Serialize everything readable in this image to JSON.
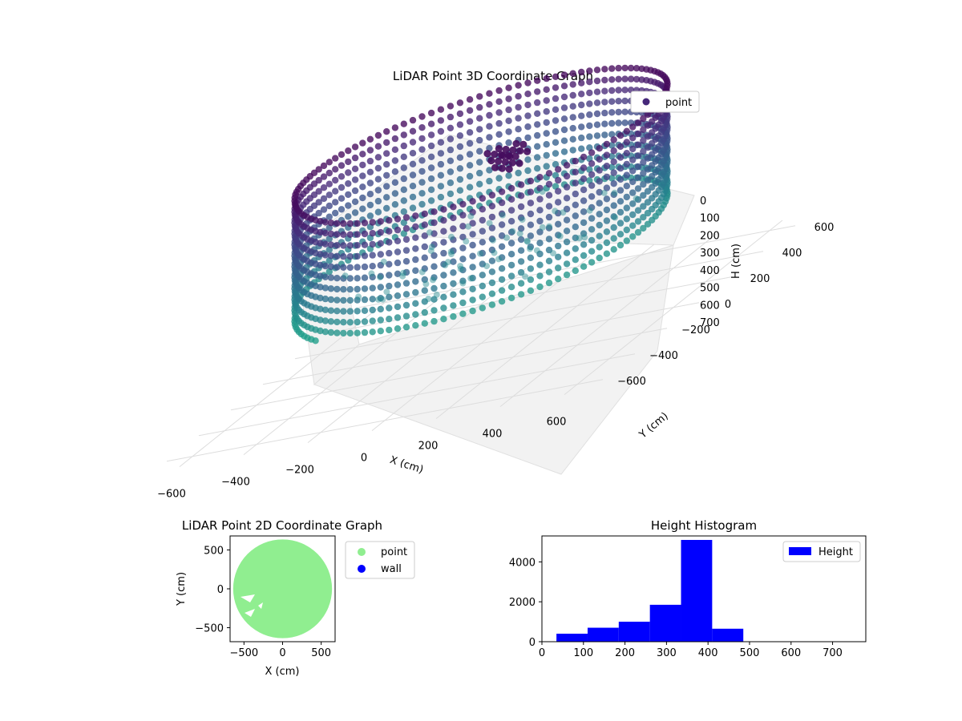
{
  "chart_data": [
    {
      "type": "scatter",
      "projection": "3d",
      "title": "LiDAR Point 3D Coordinate Graph",
      "xlabel": "X (cm)",
      "ylabel": "Y (cm)",
      "zlabel": "H (cm)",
      "xlim": [
        -680,
        680
      ],
      "ylim": [
        -680,
        680
      ],
      "zlim": [
        0,
        780
      ],
      "z_inverted": true,
      "xticks": [
        -600,
        -400,
        -200,
        0,
        200,
        400,
        600
      ],
      "yticks": [
        -600,
        -400,
        -200,
        0,
        200,
        400,
        600
      ],
      "zticks": [
        0,
        100,
        200,
        300,
        400,
        500,
        600,
        700
      ],
      "grid": true,
      "colormap": "viridis",
      "legend": {
        "placement": "top-right",
        "entries": [
          {
            "label": "point",
            "color": "#46287a"
          }
        ]
      },
      "series": [
        {
          "name": "point",
          "description_of_shape": "ring wall",
          "ring_radius": 520,
          "h_range": [
            60,
            480
          ],
          "points_sample": [
            {
              "x": 520,
              "y": 0,
              "h": 120
            },
            {
              "x": 0,
              "y": 520,
              "h": 100
            },
            {
              "x": -520,
              "y": 0,
              "h": 160
            },
            {
              "x": 0,
              "y": -520,
              "h": 420
            },
            {
              "x": 368,
              "y": -368,
              "h": 380
            },
            {
              "x": -368,
              "y": 368,
              "h": 90
            }
          ]
        }
      ]
    },
    {
      "type": "scatter",
      "title": "LiDAR Point 2D Coordinate Graph",
      "xlabel": "X (cm)",
      "ylabel": "Y (cm)",
      "xlim": [
        -680,
        680
      ],
      "ylim": [
        -680,
        680
      ],
      "xticks": [
        -500,
        0,
        500
      ],
      "yticks": [
        -500,
        0,
        500
      ],
      "legend": {
        "placement": "right-outside",
        "entries": [
          {
            "label": "point",
            "color": "#90ee90"
          },
          {
            "label": "wall",
            "color": "#0000ff"
          }
        ]
      },
      "series": [
        {
          "name": "point",
          "color": "#90ee90",
          "shape": "filled disc",
          "radius": 640
        },
        {
          "name": "wall",
          "color": "#0000ff",
          "values": []
        }
      ]
    },
    {
      "type": "bar",
      "subtype": "histogram",
      "title": "Height Histogram",
      "xlim": [
        0,
        780
      ],
      "ylim": [
        0,
        5300
      ],
      "xticks": [
        0,
        100,
        200,
        300,
        400,
        500,
        600,
        700
      ],
      "yticks": [
        0,
        2000,
        4000
      ],
      "legend": {
        "placement": "top-right",
        "entries": [
          {
            "label": "Height",
            "color": "#0000ff"
          }
        ]
      },
      "bins": [
        {
          "x0": 35,
          "x1": 110,
          "count": 400
        },
        {
          "x0": 110,
          "x1": 185,
          "count": 700
        },
        {
          "x0": 185,
          "x1": 260,
          "count": 1000
        },
        {
          "x0": 260,
          "x1": 335,
          "count": 1850
        },
        {
          "x0": 335,
          "x1": 410,
          "count": 5100
        },
        {
          "x0": 410,
          "x1": 485,
          "count": 650
        }
      ],
      "color": "#0000ff"
    }
  ]
}
